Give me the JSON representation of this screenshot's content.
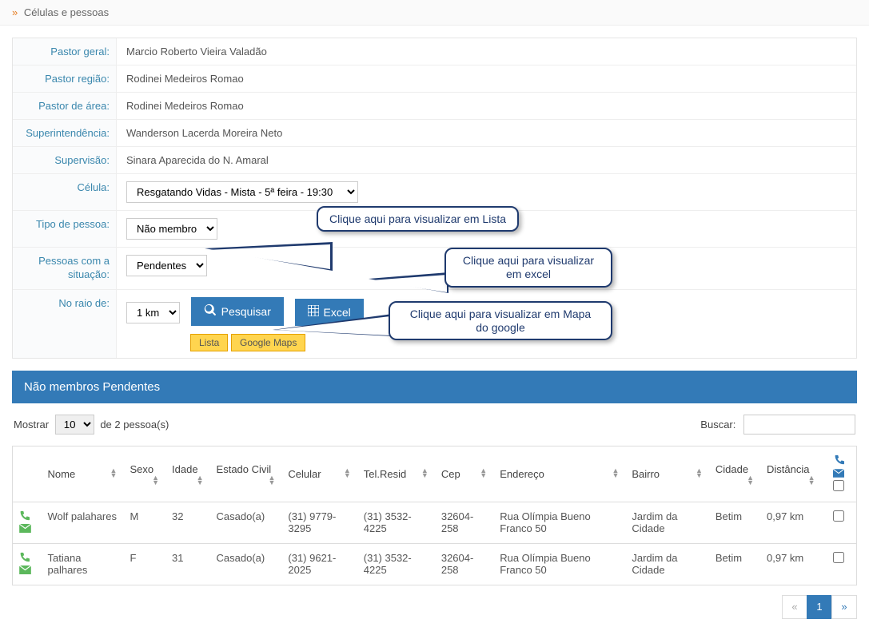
{
  "breadcrumb": {
    "text": "Células e pessoas"
  },
  "form": {
    "labels": {
      "pastor_geral": "Pastor geral:",
      "pastor_regiao": "Pastor região:",
      "pastor_area": "Pastor de área:",
      "superintendencia": "Superintendência:",
      "supervisao": "Supervisão:",
      "celula": "Célula:",
      "tipo_pessoa": "Tipo de pessoa:",
      "pessoas_situacao_line1": "Pessoas com a",
      "pessoas_situacao_line2": "situação:",
      "no_raio_de": "No raio de:"
    },
    "values": {
      "pastor_geral": "Marcio Roberto Vieira Valadão",
      "pastor_regiao": "Rodinei Medeiros Romao",
      "pastor_area": "Rodinei Medeiros Romao",
      "superintendencia": "Wanderson Lacerda Moreira Neto",
      "supervisao": "Sinara Aparecida do N. Amaral",
      "celula_selected": "Resgatando Vidas - Mista - 5ª feira - 19:30",
      "tipo_pessoa_selected": "Não membro",
      "situacao_selected": "Pendentes",
      "raio_selected": "1 km"
    },
    "buttons": {
      "pesquisar": "Pesquisar",
      "excel": "Excel"
    },
    "tabs": {
      "lista": "Lista",
      "google_maps": "Google Maps"
    }
  },
  "callouts": {
    "lista": "Clique aqui para visualizar em Lista",
    "excel_line1": "Clique aqui para visualizar",
    "excel_line2": "em excel",
    "maps_line1": "Clique aqui para visualizar em Mapa",
    "maps_line2": "do google"
  },
  "panel": {
    "title": "Não membros Pendentes"
  },
  "table": {
    "length_label_pre": "Mostrar",
    "length_value": "10",
    "length_label_suf": "de 2 pessoa(s)",
    "search_label": "Buscar:",
    "search_value": "",
    "columns": {
      "nome": "Nome",
      "sexo": "Sexo",
      "idade": "Idade",
      "estado_civil": "Estado Civil",
      "celular": "Celular",
      "tel_resid": "Tel.Resid",
      "cep": "Cep",
      "endereco": "Endereço",
      "bairro": "Bairro",
      "cidade": "Cidade",
      "distancia": "Distância"
    },
    "rows": [
      {
        "nome": "Wolf palahares",
        "sexo": "M",
        "idade": "32",
        "estado_civil": "Casado(a)",
        "celular": "(31) 9779-3295",
        "tel_resid": "(31) 3532-4225",
        "cep": "32604-258",
        "endereco": "Rua Olímpia Bueno Franco 50",
        "bairro": "Jardim da Cidade",
        "cidade": "Betim",
        "distancia": "0,97 km"
      },
      {
        "nome": "Tatiana palhares",
        "sexo": "F",
        "idade": "31",
        "estado_civil": "Casado(a)",
        "celular": "(31) 9621-2025",
        "tel_resid": "(31) 3532-4225",
        "cep": "32604-258",
        "endereco": "Rua Olímpia Bueno Franco 50",
        "bairro": "Jardim da Cidade",
        "cidade": "Betim",
        "distancia": "0,97 km"
      }
    ]
  },
  "pagination": {
    "prev": "«",
    "page1": "1",
    "next": "»"
  }
}
